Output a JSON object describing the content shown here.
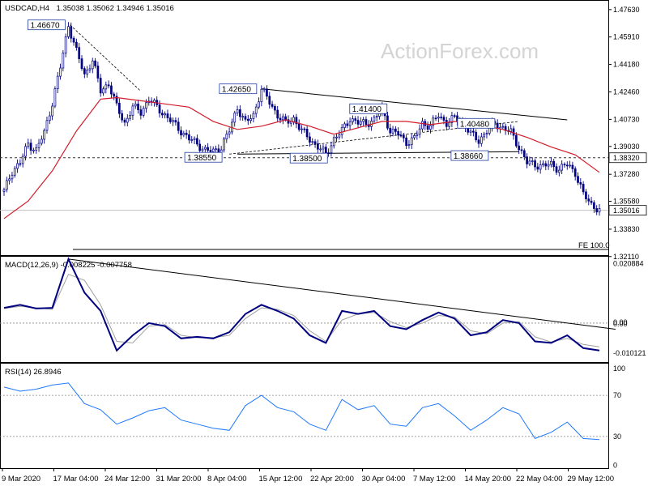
{
  "header": {
    "symbol": "USDCAD,H4",
    "ohlc": "1.35038 1.35062 1.34946 1.35016"
  },
  "watermark": "ActionForex.com",
  "colors": {
    "price": "#000080",
    "ma": "#d21c2b",
    "macd": "#000080",
    "signal": "#a0a0a0",
    "rsi": "#1e78ff",
    "trendline": "#000000",
    "dashed": "#333333",
    "label_border": "#1f3c9e"
  },
  "chart_data": [
    {
      "type": "candlestick",
      "panel": "price",
      "title": "USDCAD,H4",
      "ylim": [
        1.3225,
        1.4813
      ],
      "y_ticks": [
        "1.47630",
        "1.45910",
        "1.44180",
        "1.42460",
        "1.40730",
        "1.39030",
        "1.37280",
        "1.35580",
        "1.33830",
        "1.32110"
      ],
      "x_labels": [
        "9 Mar 2020",
        "17 Mar 04:00",
        "24 Mar 12:00",
        "31 Mar 20:00",
        "8 Apr 04:00",
        "15 Apr 12:00",
        "22 Apr 20:00",
        "30 Apr 04:00",
        "7 May 12:00",
        "14 May 20:00",
        "22 May 04:00",
        "29 May 12:00"
      ],
      "close_path": [
        [
          0,
          1.362
        ],
        [
          1,
          1.375
        ],
        [
          2,
          1.38
        ],
        [
          3,
          1.392
        ],
        [
          4,
          1.388
        ],
        [
          5,
          1.399
        ],
        [
          6,
          1.418
        ],
        [
          7,
          1.44
        ],
        [
          8,
          1.4667
        ],
        [
          9,
          1.45
        ],
        [
          10,
          1.435
        ],
        [
          11,
          1.445
        ],
        [
          12,
          1.425
        ],
        [
          13,
          1.43
        ],
        [
          14,
          1.415
        ],
        [
          15,
          1.405
        ],
        [
          16,
          1.415
        ],
        [
          17,
          1.412
        ],
        [
          18,
          1.42
        ],
        [
          19,
          1.415
        ],
        [
          20,
          1.41
        ],
        [
          21,
          1.405
        ],
        [
          22,
          1.4
        ],
        [
          23,
          1.395
        ],
        [
          24,
          1.392
        ],
        [
          25,
          1.388
        ],
        [
          26,
          1.387
        ],
        [
          27,
          1.39
        ],
        [
          28,
          1.4
        ],
        [
          29,
          1.415
        ],
        [
          30,
          1.405
        ],
        [
          31,
          1.41
        ],
        [
          32,
          1.4265
        ],
        [
          33,
          1.418
        ],
        [
          34,
          1.41
        ],
        [
          35,
          1.405
        ],
        [
          36,
          1.408
        ],
        [
          37,
          1.4
        ],
        [
          38,
          1.395
        ],
        [
          39,
          1.39
        ],
        [
          40,
          1.3855
        ],
        [
          41,
          1.395
        ],
        [
          42,
          1.4
        ],
        [
          43,
          1.408
        ],
        [
          44,
          1.405
        ],
        [
          45,
          1.405
        ],
        [
          46,
          1.407
        ],
        [
          47,
          1.414
        ],
        [
          48,
          1.4
        ],
        [
          49,
          1.398
        ],
        [
          50,
          1.393
        ],
        [
          51,
          1.395
        ],
        [
          52,
          1.405
        ],
        [
          53,
          1.403
        ],
        [
          54,
          1.41
        ],
        [
          55,
          1.405
        ],
        [
          56,
          1.408
        ],
        [
          57,
          1.406
        ],
        [
          58,
          1.398
        ],
        [
          59,
          1.394
        ],
        [
          60,
          1.4
        ],
        [
          61,
          1.4048
        ],
        [
          62,
          1.402
        ],
        [
          63,
          1.399
        ],
        [
          64,
          1.39
        ],
        [
          65,
          1.38
        ],
        [
          66,
          1.379
        ],
        [
          67,
          1.378
        ],
        [
          68,
          1.379
        ],
        [
          69,
          1.376
        ],
        [
          70,
          1.379
        ],
        [
          71,
          1.374
        ],
        [
          72,
          1.36
        ],
        [
          73,
          1.354
        ],
        [
          74,
          1.3502
        ]
      ],
      "ma_path": [
        [
          0,
          1.345
        ],
        [
          3,
          1.356
        ],
        [
          6,
          1.375
        ],
        [
          9,
          1.4
        ],
        [
          12,
          1.42
        ],
        [
          14,
          1.421
        ],
        [
          17,
          1.419
        ],
        [
          20,
          1.417
        ],
        [
          23,
          1.415
        ],
        [
          26,
          1.406
        ],
        [
          29,
          1.401
        ],
        [
          32,
          1.403
        ],
        [
          35,
          1.407
        ],
        [
          38,
          1.403
        ],
        [
          41,
          1.398
        ],
        [
          44,
          1.402
        ],
        [
          47,
          1.406
        ],
        [
          50,
          1.406
        ],
        [
          53,
          1.404
        ],
        [
          56,
          1.406
        ],
        [
          59,
          1.404
        ],
        [
          62,
          1.401
        ],
        [
          65,
          1.396
        ],
        [
          68,
          1.39
        ],
        [
          71,
          1.385
        ],
        [
          74,
          1.374
        ]
      ],
      "annotations": [
        {
          "label": "1.46670",
          "value": 1.4667
        },
        {
          "label": "1.42650",
          "value": 1.4265
        },
        {
          "label": "1.41400",
          "value": 1.414
        },
        {
          "label": "1.40480",
          "value": 1.4048
        },
        {
          "label": "1.38550",
          "value": 1.3855
        },
        {
          "label": "1.38500",
          "value": 1.385
        },
        {
          "label": "1.38660",
          "value": 1.3866
        }
      ],
      "horizontal_levels": [
        {
          "label": "1.38320",
          "value": 1.3832,
          "style": "dashed"
        },
        {
          "label": "1.35016",
          "value": 1.35016,
          "style": "solid"
        }
      ],
      "fe_label": "FE 100.0"
    },
    {
      "type": "line",
      "panel": "macd",
      "title": "MACD(12,26,9) -0.008225 -0.007758",
      "ylim": [
        -0.0125,
        0.0215
      ],
      "y_ticks": [
        "0.020884",
        "0.00",
        "0.00",
        "-0.010121"
      ],
      "series": [
        {
          "name": "MACD",
          "values": [
            [
              0,
              0.005
            ],
            [
              2,
              0.006
            ],
            [
              4,
              0.0048
            ],
            [
              6,
              0.005
            ],
            [
              8,
              0.021
            ],
            [
              10,
              0.01
            ],
            [
              12,
              0.004
            ],
            [
              14,
              -0.009
            ],
            [
              16,
              -0.004
            ],
            [
              18,
              0.0
            ],
            [
              20,
              -0.001
            ],
            [
              22,
              -0.005
            ],
            [
              24,
              -0.0045
            ],
            [
              26,
              -0.005
            ],
            [
              28,
              -0.003
            ],
            [
              30,
              0.003
            ],
            [
              32,
              0.006
            ],
            [
              34,
              0.004
            ],
            [
              36,
              0.0015
            ],
            [
              38,
              -0.004
            ],
            [
              40,
              -0.0065
            ],
            [
              42,
              0.004
            ],
            [
              44,
              0.003
            ],
            [
              46,
              0.004
            ],
            [
              48,
              -0.001
            ],
            [
              50,
              -0.002
            ],
            [
              52,
              0.001
            ],
            [
              54,
              0.0035
            ],
            [
              56,
              0.0015
            ],
            [
              58,
              -0.004
            ],
            [
              60,
              -0.003
            ],
            [
              62,
              0.001
            ],
            [
              64,
              0.0
            ],
            [
              66,
              -0.006
            ],
            [
              68,
              -0.0065
            ],
            [
              70,
              -0.004
            ],
            [
              72,
              -0.0082
            ],
            [
              74,
              -0.009
            ]
          ]
        },
        {
          "name": "Signal",
          "values": [
            [
              0,
              0.0048
            ],
            [
              2,
              0.0055
            ],
            [
              4,
              0.005
            ],
            [
              6,
              0.0045
            ],
            [
              8,
              0.016
            ],
            [
              10,
              0.014
            ],
            [
              12,
              0.006
            ],
            [
              14,
              -0.006
            ],
            [
              16,
              -0.0065
            ],
            [
              18,
              -0.001
            ],
            [
              20,
              -0.0005
            ],
            [
              22,
              -0.004
            ],
            [
              24,
              -0.0048
            ],
            [
              26,
              -0.0048
            ],
            [
              28,
              -0.004
            ],
            [
              30,
              0.0015
            ],
            [
              32,
              0.005
            ],
            [
              34,
              0.0045
            ],
            [
              36,
              0.0025
            ],
            [
              38,
              -0.0025
            ],
            [
              40,
              -0.006
            ],
            [
              42,
              0.001
            ],
            [
              44,
              0.003
            ],
            [
              46,
              0.0035
            ],
            [
              48,
              0.0005
            ],
            [
              50,
              -0.0015
            ],
            [
              52,
              0.0
            ],
            [
              54,
              0.0025
            ],
            [
              56,
              0.002
            ],
            [
              58,
              -0.0025
            ],
            [
              60,
              -0.0035
            ],
            [
              62,
              0.0
            ],
            [
              64,
              0.0005
            ],
            [
              66,
              -0.0045
            ],
            [
              68,
              -0.0062
            ],
            [
              70,
              -0.005
            ],
            [
              72,
              -0.007
            ],
            [
              74,
              -0.0078
            ]
          ]
        }
      ],
      "trendline": [
        [
          8,
          0.021
        ],
        [
          75,
          -0.002
        ]
      ]
    },
    {
      "type": "line",
      "panel": "rsi",
      "title": "RSI(14) 26.8946",
      "ylim": [
        0,
        100
      ],
      "y_ticks": [
        "100",
        "70",
        "30",
        "0"
      ],
      "levels": [
        70,
        30
      ],
      "series": [
        {
          "name": "RSI",
          "values": [
            [
              0,
              78
            ],
            [
              2,
              74
            ],
            [
              4,
              76
            ],
            [
              6,
              80
            ],
            [
              8,
              82
            ],
            [
              10,
              62
            ],
            [
              12,
              56
            ],
            [
              14,
              42
            ],
            [
              16,
              48
            ],
            [
              18,
              55
            ],
            [
              20,
              58
            ],
            [
              22,
              46
            ],
            [
              24,
              42
            ],
            [
              26,
              38
            ],
            [
              28,
              36
            ],
            [
              30,
              60
            ],
            [
              32,
              70
            ],
            [
              34,
              58
            ],
            [
              36,
              54
            ],
            [
              38,
              42
            ],
            [
              40,
              36
            ],
            [
              42,
              66
            ],
            [
              44,
              56
            ],
            [
              46,
              60
            ],
            [
              48,
              42
            ],
            [
              50,
              40
            ],
            [
              52,
              58
            ],
            [
              54,
              62
            ],
            [
              56,
              50
            ],
            [
              58,
              36
            ],
            [
              60,
              46
            ],
            [
              62,
              58
            ],
            [
              64,
              52
            ],
            [
              66,
              28
            ],
            [
              68,
              34
            ],
            [
              70,
              44
            ],
            [
              72,
              28
            ],
            [
              74,
              27
            ]
          ]
        }
      ]
    }
  ]
}
